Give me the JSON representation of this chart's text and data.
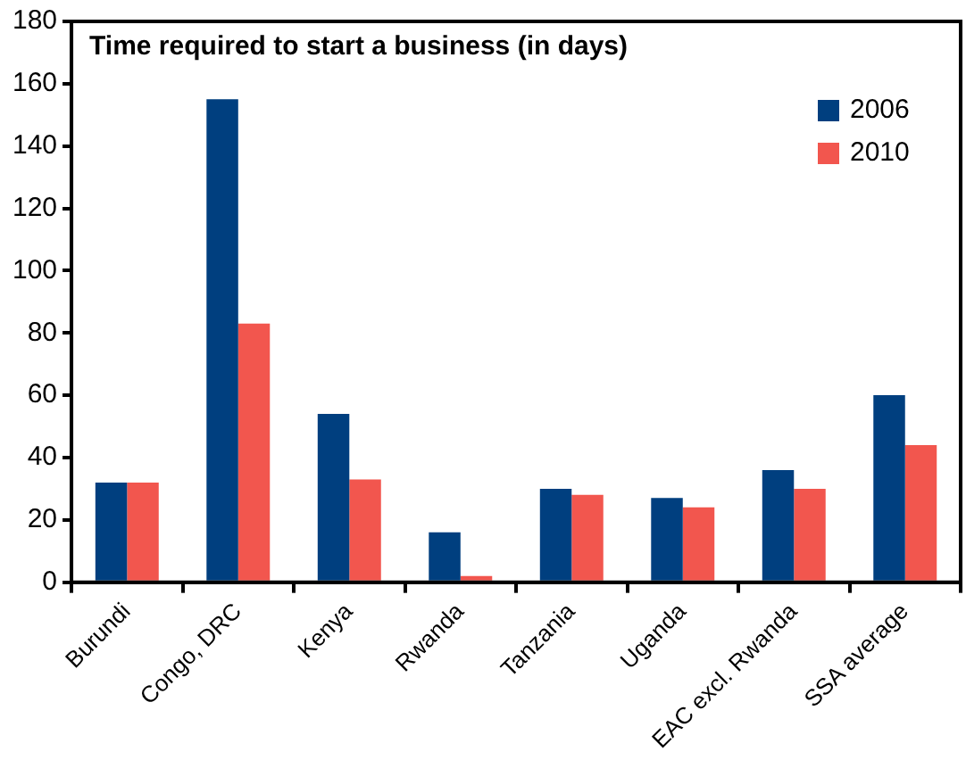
{
  "chart_data": {
    "type": "bar",
    "title": "Time required to start a business (in days)",
    "categories": [
      "Burundi",
      "Congo, DRC",
      "Kenya",
      "Rwanda",
      "Tanzania",
      "Uganda",
      "EAC excl. Rwanda",
      "SSA average"
    ],
    "series": [
      {
        "name": "2006",
        "color": "#003f7f",
        "values": [
          32,
          155,
          54,
          16,
          30,
          27,
          36,
          60
        ]
      },
      {
        "name": "2010",
        "color": "#f2564e",
        "values": [
          32,
          83,
          33,
          2,
          28,
          24,
          30,
          44
        ]
      }
    ],
    "ylim": [
      0,
      180
    ],
    "yticks": [
      0,
      20,
      40,
      60,
      80,
      100,
      120,
      140,
      160,
      180
    ],
    "grid": false,
    "legend": "top right"
  }
}
